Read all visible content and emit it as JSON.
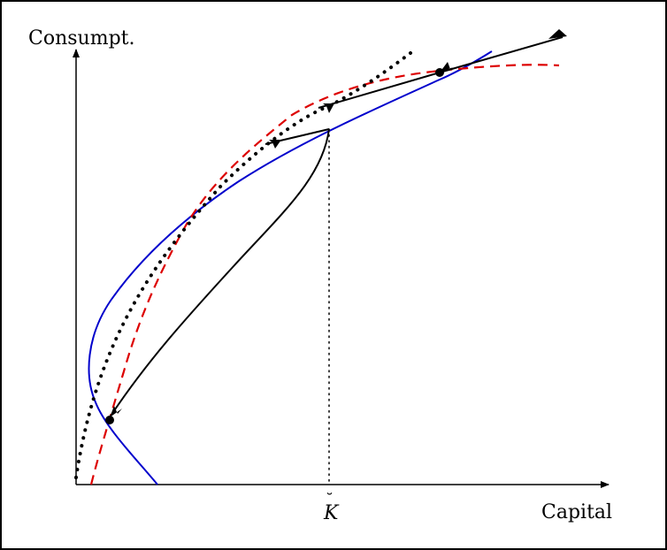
{
  "diagram": {
    "y_axis_label": "Consumpt.",
    "x_axis_label": "Capital",
    "threshold_label": "K",
    "threshold_accent": "˘",
    "colors": {
      "frame": "#000000",
      "blue_curve": "#0000cc",
      "red_dashed_curve": "#dd0000",
      "dotted_curve": "#000000",
      "trajectories": "#000000"
    },
    "line_styles": {
      "blue_curve": "solid",
      "red_curve": "dashed",
      "black_dotted_curve": "dotted",
      "threshold_line": "dotted",
      "trajectories": "solid with arrowheads"
    },
    "equilibria": [
      {
        "name": "low-steady-state"
      },
      {
        "name": "high-steady-state"
      }
    ]
  }
}
